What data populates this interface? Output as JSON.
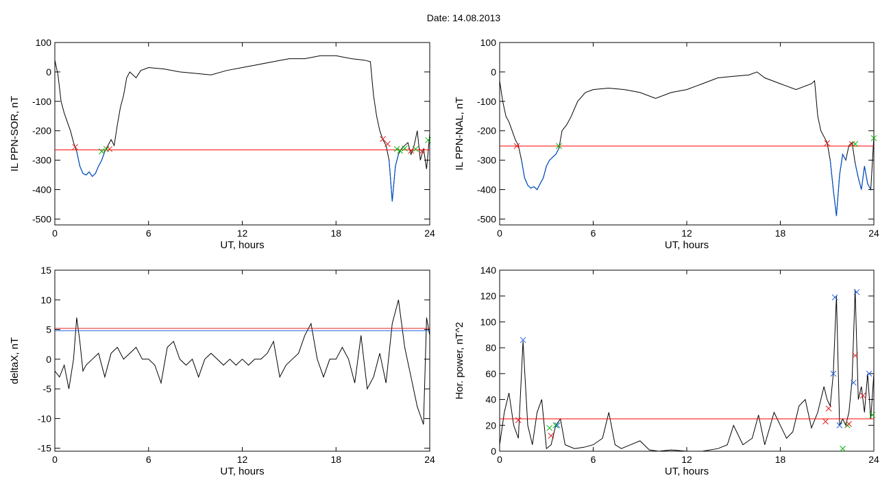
{
  "header": {
    "date_label": "Date:  14.08.2013"
  },
  "colors": {
    "trace": "#000000",
    "threshold": "#ff0000",
    "highlight": "#0050c8",
    "marker_green": "#00b000",
    "marker_blue": "#2060e0",
    "marker_red": "#e02020"
  },
  "chart_data": [
    {
      "id": "ppn-sor",
      "type": "line",
      "title": "",
      "xlabel": "UT, hours",
      "ylabel": "IL PPN-SOR, nT",
      "xlim": [
        0,
        24
      ],
      "ylim": [
        -520,
        100
      ],
      "xticks": [
        0,
        6,
        12,
        18,
        24
      ],
      "yticks": [
        100,
        0,
        -100,
        -200,
        -300,
        -400,
        -500
      ],
      "threshold": -265,
      "series": [
        {
          "x": [
            0,
            0.2,
            0.4,
            0.6,
            0.8,
            1.0,
            1.2,
            1.4,
            1.6,
            1.8,
            2.0,
            2.2,
            2.4,
            2.6,
            2.8,
            3.0,
            3.2,
            3.4,
            3.6,
            3.8,
            4.0,
            4.2,
            4.4,
            4.6,
            4.8,
            5.0,
            5.2,
            5.5,
            6,
            7,
            8,
            9,
            10,
            11,
            12,
            13,
            14,
            15,
            16,
            17,
            18,
            19,
            19.8,
            20.2,
            20.4,
            20.6,
            20.8,
            21.0,
            21.2,
            21.4,
            21.6,
            21.8,
            22.0,
            22.2,
            22.4,
            22.6,
            22.8,
            23.0,
            23.2,
            23.4,
            23.6,
            23.8,
            24.0
          ],
          "y": [
            40,
            -10,
            -100,
            -140,
            -170,
            -200,
            -240,
            -270,
            -320,
            -345,
            -350,
            -340,
            -355,
            -345,
            -320,
            -300,
            -270,
            -250,
            -230,
            -250,
            -180,
            -120,
            -80,
            -20,
            0,
            -10,
            -20,
            5,
            15,
            10,
            0,
            -5,
            -10,
            5,
            15,
            25,
            35,
            45,
            45,
            55,
            55,
            45,
            40,
            35,
            -80,
            -150,
            -200,
            -230,
            -250,
            -300,
            -440,
            -320,
            -280,
            -260,
            -250,
            -240,
            -280,
            -250,
            -200,
            -300,
            -260,
            -330,
            -210
          ]
        }
      ],
      "markers": [
        {
          "x": 1.3,
          "y": -255,
          "color": "red"
        },
        {
          "x": 3.0,
          "y": -270,
          "color": "green"
        },
        {
          "x": 3.3,
          "y": -262,
          "color": "green"
        },
        {
          "x": 3.5,
          "y": -262,
          "color": "red"
        },
        {
          "x": 21.0,
          "y": -228,
          "color": "red"
        },
        {
          "x": 21.3,
          "y": -245,
          "color": "red"
        },
        {
          "x": 21.9,
          "y": -262,
          "color": "green"
        },
        {
          "x": 22.1,
          "y": -268,
          "color": "green"
        },
        {
          "x": 22.4,
          "y": -260,
          "color": "green"
        },
        {
          "x": 22.8,
          "y": -268,
          "color": "red"
        },
        {
          "x": 23.1,
          "y": -262,
          "color": "green"
        },
        {
          "x": 23.5,
          "y": -270,
          "color": "red"
        },
        {
          "x": 23.9,
          "y": -232,
          "color": "green"
        }
      ]
    },
    {
      "id": "ppn-nal",
      "type": "line",
      "title": "",
      "xlabel": "UT, hours",
      "ylabel": "IL PPN-NAL, nT",
      "xlim": [
        0,
        24
      ],
      "ylim": [
        -520,
        100
      ],
      "xticks": [
        0,
        6,
        12,
        18,
        24
      ],
      "yticks": [
        100,
        0,
        -100,
        -200,
        -300,
        -400,
        -500
      ],
      "threshold": -252,
      "series": [
        {
          "x": [
            0,
            0.2,
            0.4,
            0.6,
            0.8,
            1.0,
            1.2,
            1.4,
            1.6,
            1.8,
            2.0,
            2.2,
            2.4,
            2.6,
            2.8,
            3.0,
            3.2,
            3.4,
            3.6,
            3.8,
            4.0,
            4.3,
            4.6,
            5.0,
            5.5,
            6,
            7,
            8,
            9,
            10,
            11,
            12,
            13,
            14,
            15,
            16,
            16.5,
            17,
            18,
            19,
            20,
            20.2,
            20.4,
            20.6,
            20.8,
            21.0,
            21.2,
            21.4,
            21.6,
            21.8,
            22.0,
            22.2,
            22.4,
            22.6,
            22.8,
            23.0,
            23.2,
            23.4,
            23.6,
            23.8,
            24.0
          ],
          "y": [
            -30,
            -100,
            -150,
            -170,
            -200,
            -230,
            -250,
            -300,
            -360,
            -385,
            -395,
            -390,
            -400,
            -380,
            -360,
            -320,
            -300,
            -290,
            -280,
            -260,
            -200,
            -180,
            -150,
            -100,
            -70,
            -60,
            -55,
            -60,
            -70,
            -90,
            -70,
            -60,
            -40,
            -20,
            -15,
            -10,
            0,
            -20,
            -40,
            -60,
            -40,
            -30,
            -150,
            -200,
            -220,
            -240,
            -300,
            -400,
            -490,
            -350,
            -280,
            -300,
            -250,
            -240,
            -310,
            -360,
            -400,
            -320,
            -380,
            -400,
            -220
          ]
        }
      ],
      "markers": [
        {
          "x": 1.1,
          "y": -252,
          "color": "red"
        },
        {
          "x": 3.8,
          "y": -252,
          "color": "green"
        },
        {
          "x": 21.0,
          "y": -242,
          "color": "red"
        },
        {
          "x": 22.6,
          "y": -245,
          "color": "red"
        },
        {
          "x": 22.8,
          "y": -245,
          "color": "green"
        },
        {
          "x": 24.0,
          "y": -225,
          "color": "green"
        }
      ]
    },
    {
      "id": "deltax",
      "type": "line",
      "title": "",
      "xlabel": "UT, hours",
      "ylabel": "deltaX, nT",
      "xlim": [
        0,
        24
      ],
      "ylim": [
        -15.5,
        15
      ],
      "xticks": [
        0,
        6,
        12,
        18,
        24
      ],
      "yticks": [
        15,
        10,
        5,
        0,
        -5,
        -10,
        -15
      ],
      "thresholds": [
        {
          "y": 5.2,
          "color": "red"
        },
        {
          "y": 4.8,
          "color": "blue"
        }
      ],
      "series": [
        {
          "x": [
            0,
            0.3,
            0.6,
            0.9,
            1.2,
            1.4,
            1.6,
            1.8,
            2.0,
            2.4,
            2.8,
            3.2,
            3.6,
            4.0,
            4.4,
            4.8,
            5.2,
            5.6,
            6.0,
            6.4,
            6.8,
            7.2,
            7.6,
            8.0,
            8.4,
            8.8,
            9.2,
            9.6,
            10.0,
            10.4,
            10.8,
            11.2,
            11.6,
            12.0,
            12.4,
            12.8,
            13.2,
            13.6,
            14.0,
            14.4,
            14.8,
            15.2,
            15.6,
            16.0,
            16.4,
            16.8,
            17.2,
            17.6,
            18.0,
            18.4,
            18.8,
            19.2,
            19.6,
            20.0,
            20.4,
            20.8,
            21.2,
            21.6,
            22.0,
            22.4,
            22.8,
            23.2,
            23.6,
            23.8,
            24.0
          ],
          "y": [
            -2,
            -3,
            -1,
            -5,
            0,
            7,
            3,
            -2,
            -1,
            0,
            1,
            -3,
            1,
            2,
            0,
            1,
            2,
            0,
            0,
            -1,
            -4,
            2,
            3,
            0,
            -1,
            0,
            -3,
            0,
            1,
            0,
            -1,
            0,
            -1,
            0,
            -1,
            0,
            0,
            1,
            3,
            -3,
            -1,
            0,
            1,
            4,
            6,
            0,
            -3,
            0,
            0,
            2,
            0,
            -4,
            4,
            -5,
            -3,
            1,
            -4,
            6,
            10,
            2,
            -3,
            -8,
            -11,
            7,
            4
          ]
        }
      ]
    },
    {
      "id": "hor-power",
      "type": "line",
      "title": "",
      "xlabel": "UT, hours",
      "ylabel": "Hor. power, nT^2",
      "xlim": [
        0,
        24
      ],
      "ylim": [
        0,
        140
      ],
      "xticks": [
        0,
        6,
        12,
        18,
        24
      ],
      "yticks": [
        140,
        120,
        100,
        80,
        60,
        40,
        20,
        0
      ],
      "threshold": 25,
      "series": [
        {
          "x": [
            0,
            0.3,
            0.6,
            0.9,
            1.2,
            1.5,
            1.8,
            2.1,
            2.4,
            2.7,
            3.0,
            3.3,
            3.6,
            3.9,
            4.2,
            4.8,
            5.4,
            6.0,
            6.6,
            7.0,
            7.4,
            7.8,
            8.4,
            9.0,
            9.6,
            10.2,
            11.0,
            12.0,
            13.0,
            14.0,
            14.6,
            15.0,
            15.6,
            16.2,
            16.6,
            17.0,
            17.6,
            18.0,
            18.4,
            18.8,
            19.2,
            19.6,
            20.0,
            20.4,
            20.8,
            21.0,
            21.2,
            21.4,
            21.6,
            21.8,
            22.0,
            22.2,
            22.4,
            22.6,
            22.8,
            23.0,
            23.2,
            23.4,
            23.6,
            23.8,
            24.0
          ],
          "y": [
            5,
            30,
            45,
            20,
            10,
            85,
            20,
            5,
            30,
            40,
            2,
            5,
            20,
            25,
            5,
            2,
            3,
            5,
            10,
            30,
            5,
            2,
            5,
            8,
            1,
            0,
            1,
            0,
            0,
            2,
            5,
            20,
            5,
            10,
            28,
            5,
            30,
            20,
            10,
            15,
            35,
            40,
            18,
            30,
            50,
            40,
            35,
            60,
            120,
            20,
            25,
            20,
            30,
            55,
            125,
            40,
            50,
            30,
            60,
            25,
            60
          ]
        }
      ],
      "markers": [
        {
          "x": 1.2,
          "y": 24,
          "color": "red"
        },
        {
          "x": 1.5,
          "y": 86,
          "color": "blue"
        },
        {
          "x": 3.2,
          "y": 18,
          "color": "green"
        },
        {
          "x": 3.3,
          "y": 12,
          "color": "red"
        },
        {
          "x": 3.6,
          "y": 20,
          "color": "green"
        },
        {
          "x": 3.7,
          "y": 20,
          "color": "blue"
        },
        {
          "x": 20.9,
          "y": 23,
          "color": "red"
        },
        {
          "x": 21.1,
          "y": 33,
          "color": "red"
        },
        {
          "x": 21.4,
          "y": 60,
          "color": "blue"
        },
        {
          "x": 21.5,
          "y": 119,
          "color": "blue"
        },
        {
          "x": 21.8,
          "y": 20,
          "color": "blue"
        },
        {
          "x": 22.0,
          "y": 2,
          "color": "green"
        },
        {
          "x": 22.3,
          "y": 20,
          "color": "green"
        },
        {
          "x": 22.4,
          "y": 21,
          "color": "red"
        },
        {
          "x": 22.7,
          "y": 53,
          "color": "blue"
        },
        {
          "x": 22.8,
          "y": 74,
          "color": "red"
        },
        {
          "x": 22.9,
          "y": 123,
          "color": "blue"
        },
        {
          "x": 23.3,
          "y": 43,
          "color": "red"
        },
        {
          "x": 23.7,
          "y": 60,
          "color": "blue"
        },
        {
          "x": 23.9,
          "y": 28,
          "color": "green"
        }
      ]
    }
  ]
}
